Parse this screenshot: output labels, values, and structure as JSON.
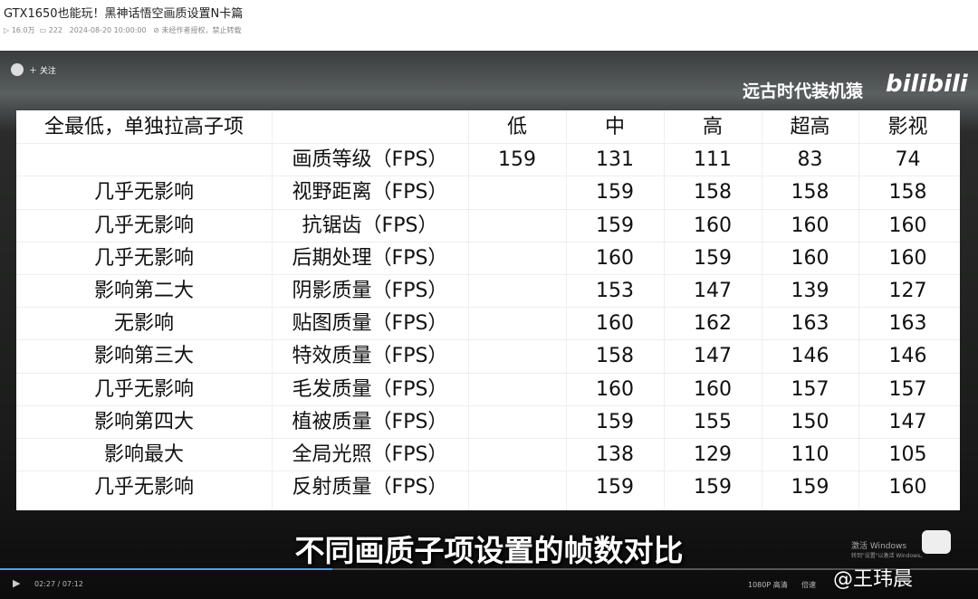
{
  "header": {
    "title": "GTX1650也能玩！黑神话悟空画质设置N卡篇",
    "views": "16.0万",
    "comments": "222",
    "date": "2024-08-20 10:00:00",
    "notice": "未经作者授权，禁止转载"
  },
  "video": {
    "follow": "关注",
    "channel": "远古时代装机猿",
    "logo": "bilibili",
    "subtitle": "不同画质子项设置的帧数对比",
    "activate": "激活 Windows",
    "activate_hint": "转到\"设置\"以激活 Windows。",
    "watermark": "@王玮晨",
    "time": "02:27 / 07:12",
    "quality": "1080P 高清",
    "speed": "倍速"
  },
  "table": {
    "corner": "全最低，单独拉高子项",
    "columns": [
      "低",
      "中",
      "高",
      "超高",
      "影视"
    ],
    "rows": [
      {
        "setting": "画质等级（FPS）",
        "values": [
          "159",
          "131",
          "111",
          "83",
          "74"
        ]
      },
      {
        "impact": "几乎无影响",
        "setting": "视野距离（FPS）",
        "values": [
          null,
          "159",
          "158",
          "158",
          "158"
        ]
      },
      {
        "impact": "几乎无影响",
        "setting": "抗锯齿（FPS）",
        "values": [
          null,
          "159",
          "160",
          "160",
          "160"
        ]
      },
      {
        "impact": "几乎无影响",
        "setting": "后期处理（FPS）",
        "values": [
          null,
          "160",
          "159",
          "160",
          "160"
        ]
      },
      {
        "impact": "影响第二大",
        "setting": "阴影质量（FPS）",
        "values": [
          null,
          "153",
          "147",
          "139",
          "127"
        ]
      },
      {
        "impact": "无影响",
        "setting": "贴图质量（FPS）",
        "values": [
          null,
          "160",
          "162",
          "163",
          "163"
        ]
      },
      {
        "impact": "影响第三大",
        "setting": "特效质量（FPS）",
        "values": [
          null,
          "158",
          "147",
          "146",
          "146"
        ]
      },
      {
        "impact": "几乎无影响",
        "setting": "毛发质量（FPS）",
        "values": [
          null,
          "160",
          "160",
          "157",
          "157"
        ]
      },
      {
        "impact": "影响第四大",
        "setting": "植被质量（FPS）",
        "values": [
          null,
          "159",
          "155",
          "150",
          "147"
        ]
      },
      {
        "impact": "影响最大",
        "setting": "全局光照（FPS）",
        "values": [
          null,
          "138",
          "129",
          "110",
          "105"
        ]
      },
      {
        "impact": "几乎无影响",
        "setting": "反射质量（FPS）",
        "values": [
          null,
          "159",
          "159",
          "159",
          "160"
        ]
      }
    ]
  }
}
